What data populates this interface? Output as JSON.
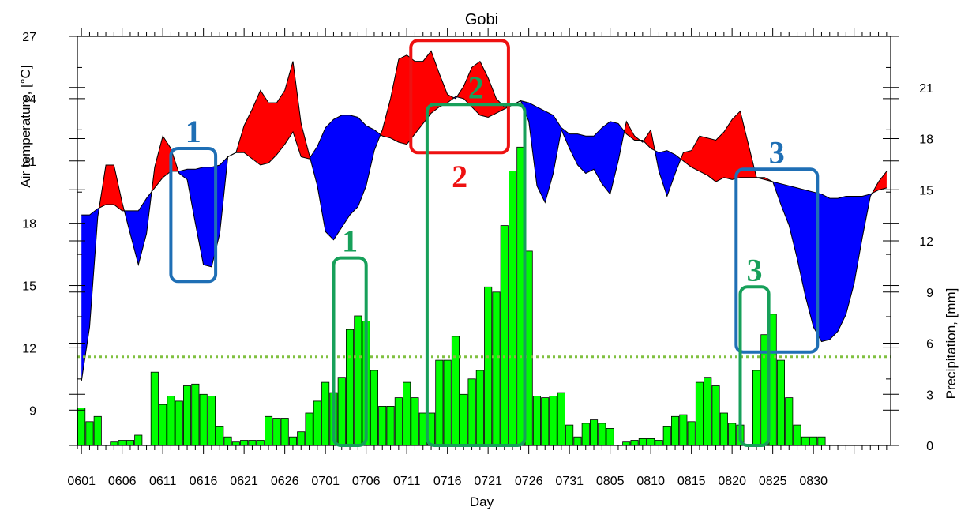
{
  "chart_data": {
    "type": "area+bar",
    "title": "Gobi",
    "xlabel": "Day",
    "x_tick_labels": [
      "0601",
      "0606",
      "0611",
      "0616",
      "0621",
      "0626",
      "0701",
      "0706",
      "0711",
      "0716",
      "0721",
      "0726",
      "0731",
      "0805",
      "0810",
      "0815",
      "0820",
      "0825",
      "0830"
    ],
    "temperature": {
      "ylabel": "Air temperature, [°C]",
      "ylim": [
        7.3,
        27
      ],
      "y_ticks": [
        9,
        12,
        15,
        18,
        21,
        24,
        27
      ],
      "colors": {
        "above": "#ff0000",
        "below": "#0000ff"
      },
      "series_a": [
        10.4,
        13.0,
        18.3,
        20.8,
        20.8,
        19.0,
        17.5,
        16.0,
        17.5,
        20.7,
        22.2,
        21.6,
        20.4,
        20.1,
        18.0,
        16.0,
        15.9,
        17.5,
        21.2,
        21.4,
        22.7,
        23.5,
        24.4,
        23.8,
        23.8,
        24.4,
        25.8,
        22.8,
        21.3,
        19.8,
        17.6,
        17.2,
        17.8,
        18.4,
        18.8,
        19.8,
        21.5,
        22.5,
        24.0,
        25.9,
        26.1,
        25.8,
        25.8,
        26.3,
        25.2,
        24.2,
        24.0,
        24.6,
        25.5,
        25.8,
        25.0,
        24.0,
        23.6,
        23.7,
        23.9,
        22.9,
        19.8,
        19.0,
        20.4,
        22.5,
        21.6,
        20.8,
        20.4,
        20.6,
        19.9,
        19.4,
        21.0,
        22.9,
        22.2,
        21.9,
        22.5,
        20.5,
        19.3,
        20.4,
        21.4,
        21.5,
        22.2,
        22.1,
        22.0,
        22.4,
        23.0,
        23.4,
        21.8,
        20.2,
        20.2,
        20.0,
        18.9,
        17.9,
        16.3,
        14.5,
        13.0,
        12.3,
        12.4,
        12.8,
        13.6,
        15.1,
        17.3,
        19.3,
        20.0,
        20.5
      ],
      "series_b": [
        18.4,
        18.4,
        18.7,
        18.9,
        18.9,
        18.6,
        18.6,
        18.6,
        19.2,
        19.7,
        20.2,
        20.5,
        20.5,
        20.6,
        20.6,
        20.7,
        20.7,
        20.8,
        21.2,
        21.4,
        21.4,
        21.1,
        20.8,
        20.9,
        21.3,
        21.8,
        22.4,
        21.2,
        21.1,
        21.7,
        22.6,
        23.0,
        23.2,
        23.2,
        23.1,
        22.7,
        22.5,
        22.2,
        22.1,
        21.9,
        21.8,
        22.3,
        22.8,
        23.3,
        23.6,
        23.8,
        24.1,
        24.0,
        23.6,
        23.2,
        23.1,
        23.3,
        23.5,
        23.7,
        23.9,
        23.8,
        23.6,
        23.4,
        23.2,
        22.6,
        22.3,
        22.3,
        22.2,
        22.2,
        22.6,
        22.9,
        22.8,
        22.3,
        22.0,
        22.0,
        21.6,
        21.4,
        21.5,
        21.3,
        21.0,
        20.7,
        20.5,
        20.3,
        20.0,
        20.2,
        20.1,
        20.2,
        20.2,
        20.2,
        20.1,
        20.0,
        19.9,
        19.8,
        19.7,
        19.6,
        19.5,
        19.4,
        19.2,
        19.2,
        19.3,
        19.3,
        19.3,
        19.4,
        19.6,
        19.7
      ]
    },
    "precipitation": {
      "ylabel": "Precipitation, [mm]",
      "ylim": [
        0,
        24
      ],
      "y_ticks": [
        0,
        3,
        6,
        9,
        12,
        15,
        18,
        21
      ],
      "threshold": 5.2,
      "color": "#00ff00",
      "threshold_color": "#80c040",
      "values": [
        2.2,
        1.4,
        1.7,
        0,
        0.2,
        0.3,
        0.3,
        0.6,
        0,
        4.3,
        2.4,
        2.9,
        2.6,
        3.5,
        3.6,
        3.0,
        2.9,
        1.1,
        0.5,
        0.2,
        0.3,
        0.3,
        0.3,
        1.7,
        1.6,
        1.6,
        0.5,
        0.8,
        1.9,
        2.6,
        3.7,
        3.1,
        4.0,
        6.8,
        7.6,
        7.3,
        4.4,
        2.3,
        2.3,
        2.8,
        3.7,
        2.8,
        1.9,
        1.9,
        5.0,
        5.0,
        6.4,
        3.0,
        3.9,
        4.4,
        9.3,
        9.0,
        12.9,
        16.1,
        17.5,
        11.4,
        2.9,
        2.8,
        2.9,
        3.1,
        1.2,
        0.5,
        1.3,
        1.5,
        1.3,
        1.0,
        0,
        0.2,
        0.3,
        0.4,
        0.4,
        0.3,
        1.1,
        1.7,
        1.8,
        1.4,
        3.7,
        4.0,
        3.5,
        1.9,
        1.3,
        1.2,
        0,
        4.4,
        6.5,
        7.7,
        5.0,
        2.8,
        1.2,
        0.5,
        0.5,
        0.5,
        0,
        0,
        0,
        0,
        0,
        0,
        0,
        0
      ]
    },
    "annotations": [
      {
        "label": "1",
        "color": "#1f6fb5",
        "group": "temperature",
        "day_range": [
          11.5,
          17
        ],
        "y_range": [
          15.2,
          21.6
        ]
      },
      {
        "label": "2",
        "color": "#ee1111",
        "group": "temperature",
        "day_range": [
          41,
          53
        ],
        "y_range": [
          21.4,
          26.8
        ]
      },
      {
        "label": "3",
        "color": "#1f6fb5",
        "group": "temperature",
        "day_range": [
          81,
          91
        ],
        "y_range": [
          11.8,
          20.6
        ]
      },
      {
        "label": "1",
        "color": "#17a05a",
        "group": "precipitation",
        "day_range": [
          31.5,
          35.5
        ],
        "y_range": [
          0,
          11
        ]
      },
      {
        "label": "2",
        "color": "#17a05a",
        "group": "precipitation",
        "day_range": [
          43,
          55
        ],
        "y_range": [
          0,
          20
        ]
      },
      {
        "label": "3",
        "color": "#17a05a",
        "group": "precipitation",
        "day_range": [
          81.5,
          85
        ],
        "y_range": [
          0,
          9.3
        ]
      }
    ]
  }
}
